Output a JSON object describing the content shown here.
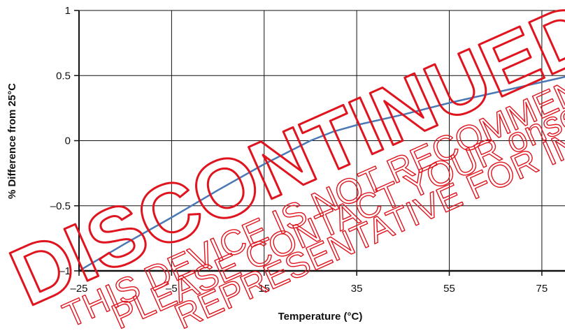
{
  "chart_data": {
    "type": "line",
    "title": "",
    "xlabel": "Temperature (°C)",
    "ylabel": "% Difference from 25°C",
    "xlim": [
      -25,
      80
    ],
    "ylim": [
      -1,
      1
    ],
    "x_ticks": [
      -25,
      -5,
      15,
      35,
      55,
      75
    ],
    "x_tick_labels": [
      "–25",
      "–5",
      "15",
      "35",
      "55",
      "75"
    ],
    "y_ticks": [
      -1,
      -0.5,
      0,
      0.5,
      1
    ],
    "y_tick_labels": [
      "–1",
      "–0.5",
      "0",
      "0.5",
      "1"
    ],
    "grid": true,
    "legend": "none",
    "series": [
      {
        "color": "#4a78b4",
        "x": [
          -25,
          -15,
          -5,
          5,
          15,
          25,
          30,
          35,
          45,
          55,
          65,
          75,
          80
        ],
        "y": [
          -1.0,
          -0.79,
          -0.59,
          -0.38,
          -0.18,
          0.0,
          0.07,
          0.12,
          0.2,
          0.29,
          0.37,
          0.45,
          0.49
        ]
      }
    ]
  },
  "watermark": {
    "main": "DISCONTINUED",
    "line1": "THIS DEVICE IS NOT RECOMMENDED FOR NEW DESIGN.",
    "line2": "PLEASE CONTACT YOUR onsemi",
    "line3": "REPRESENTATIVE FOR INFORMATION",
    "color": "#e0141e"
  }
}
